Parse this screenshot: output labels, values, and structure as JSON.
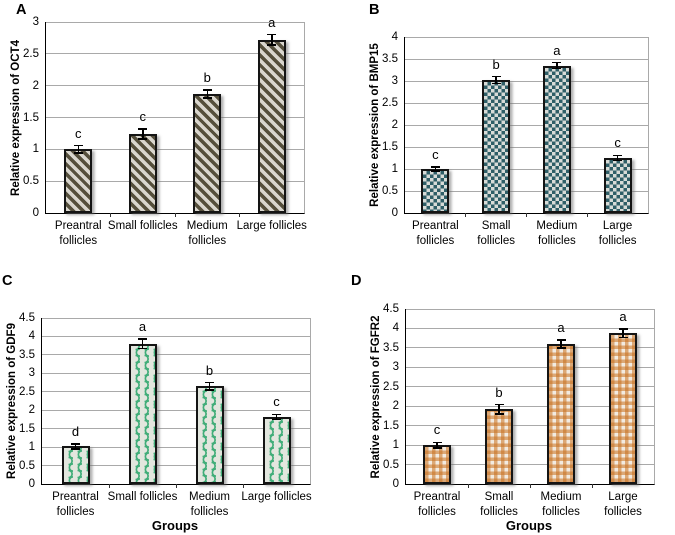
{
  "figure": {
    "background": "#ffffff",
    "panel_labels": [
      "A",
      "B",
      "C",
      "D"
    ],
    "group_axis_label": "Groups",
    "shared_categories": [
      "Preantral follicles",
      "Small follicles",
      "Medium follicles",
      "Large follicles"
    ]
  },
  "chart_data": [
    {
      "type": "bar",
      "label": "A",
      "ylabel": "Relative expression of OCT4",
      "xlabel": "",
      "categories": [
        "Preantral follicles",
        "Small follicles",
        "Medium follicles",
        "Large follicles"
      ],
      "values": [
        1.0,
        1.24,
        1.87,
        2.72
      ],
      "errors": [
        0.06,
        0.08,
        0.06,
        0.08
      ],
      "letters": [
        "c",
        "c",
        "b",
        "a"
      ],
      "ylim": [
        0,
        3
      ],
      "ytick_step": 0.5,
      "yticks": [
        "0",
        "0.5",
        "1",
        "1.5",
        "2",
        "2.5",
        "3"
      ],
      "grid": "horizontal",
      "legend": "none",
      "pattern": "diagonal-stripes",
      "pattern_fg": "#554f3c",
      "pattern_bg": "#d9d6ce"
    },
    {
      "type": "bar",
      "label": "B",
      "ylabel": "Relative expression of BMP15",
      "xlabel": "",
      "categories": [
        "Preantral follicles",
        "Small follicles",
        "Medium follicles",
        "Large follicles"
      ],
      "values": [
        1.0,
        3.02,
        3.35,
        1.25
      ],
      "errors": [
        0.05,
        0.08,
        0.07,
        0.06
      ],
      "letters": [
        "c",
        "b",
        "a",
        "c"
      ],
      "ylim": [
        0,
        4
      ],
      "ytick_step": 0.5,
      "yticks": [
        "0",
        "0.5",
        "1",
        "1.5",
        "2",
        "2.5",
        "3",
        "3.5",
        "4"
      ],
      "grid": "horizontal",
      "legend": "none",
      "pattern": "checkerboard",
      "pattern_fg": "#2e5e67",
      "pattern_bg": "#d8dbd7"
    },
    {
      "type": "bar",
      "label": "C",
      "ylabel": "Relative expression of GDF9",
      "xlabel": "Groups",
      "categories": [
        "Preantral follicles",
        "Small follicles",
        "Medium follicles",
        "Large follicles"
      ],
      "values": [
        1.02,
        3.8,
        2.65,
        1.82
      ],
      "errors": [
        0.07,
        0.13,
        0.1,
        0.07
      ],
      "letters": [
        "d",
        "a",
        "b",
        "c"
      ],
      "ylim": [
        0,
        4.5
      ],
      "ytick_step": 0.5,
      "yticks": [
        "0",
        "0.5",
        "1",
        "1.5",
        "2",
        "2.5",
        "3",
        "3.5",
        "4",
        "4.5"
      ],
      "grid": "horizontal",
      "legend": "none",
      "pattern": "fish-scales",
      "pattern_fg": "#41ad79",
      "pattern_bg": "#e2e6de"
    },
    {
      "type": "bar",
      "label": "D",
      "ylabel": "Relative expression of FGFR2",
      "xlabel": "Groups",
      "categories": [
        "Preantral follicles",
        "Small follicles",
        "Medium follicles",
        "Large follicles"
      ],
      "values": [
        1.0,
        1.92,
        3.6,
        3.88
      ],
      "errors": [
        0.07,
        0.12,
        0.1,
        0.11
      ],
      "letters": [
        "c",
        "b",
        "a",
        "a"
      ],
      "ylim": [
        0,
        4.5
      ],
      "ytick_step": 0.5,
      "yticks": [
        "0",
        "0.5",
        "1",
        "1.5",
        "2",
        "2.5",
        "3",
        "3.5",
        "4",
        "4.5"
      ],
      "grid": "horizontal",
      "legend": "none",
      "pattern": "gingham",
      "pattern_fg": "#c8701e",
      "pattern_bg": "#f2ebe1"
    }
  ]
}
